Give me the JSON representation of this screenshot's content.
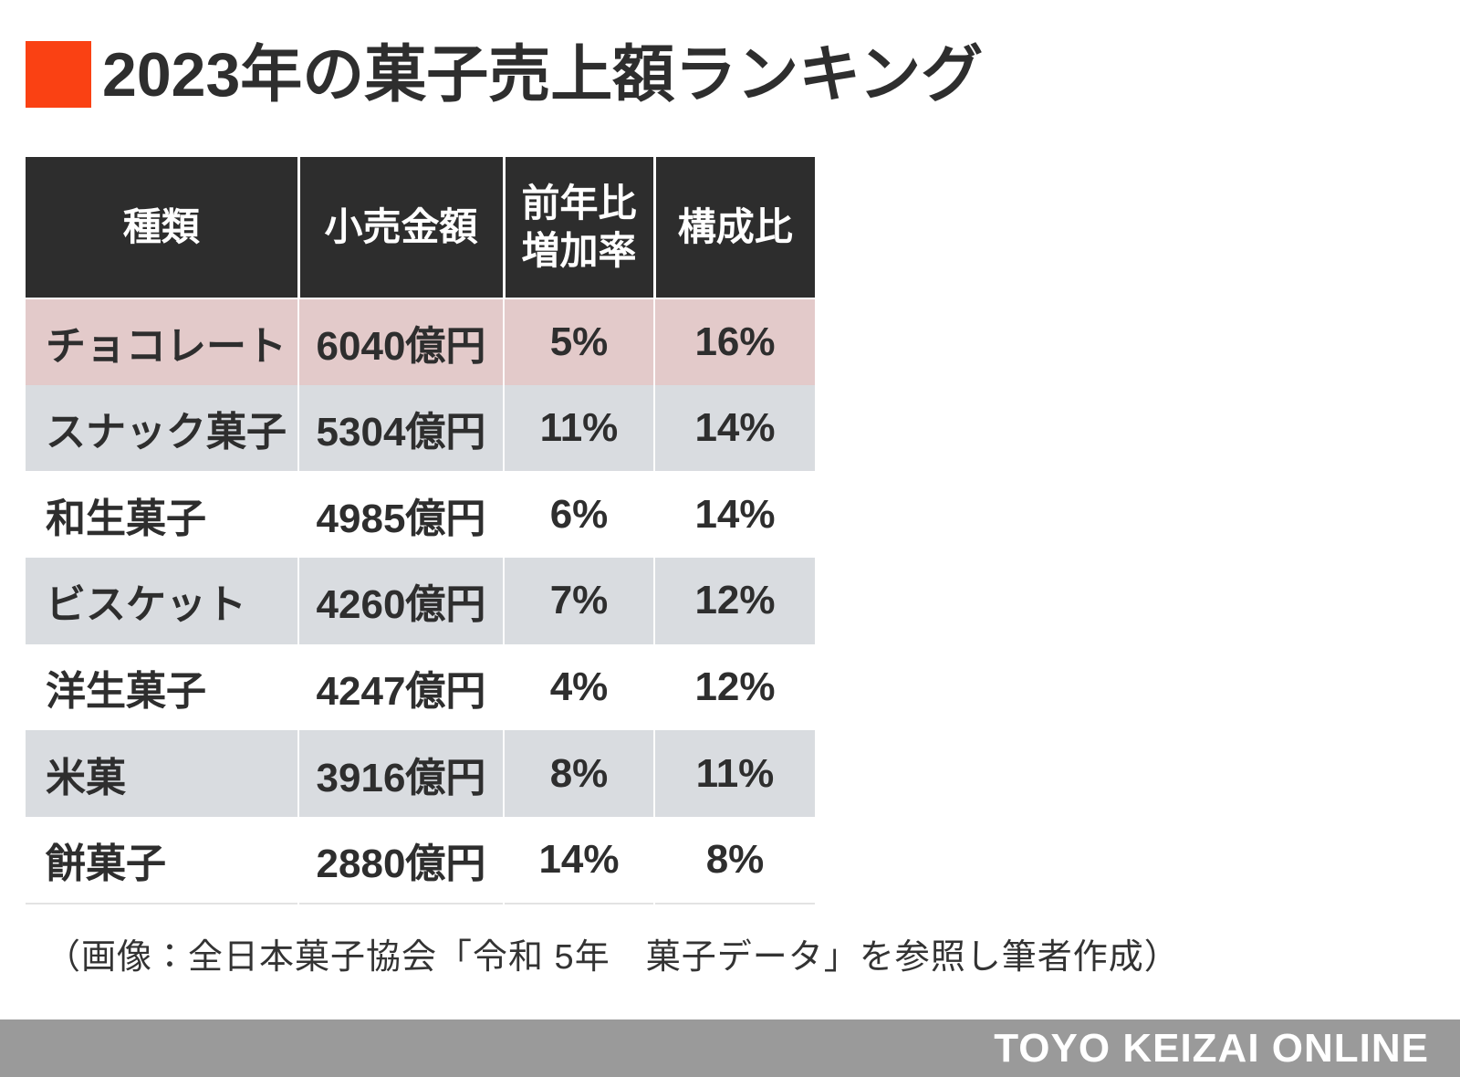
{
  "title": "2023年の菓子売上額ランキング",
  "colors": {
    "accent_red": "#fa4113",
    "header_bg": "#2d2d2d",
    "header_text": "#ffffff",
    "highlight_row_bg": "#e3caca",
    "alt_row_bg": "#d9dce0",
    "row_bg": "#ffffff",
    "cell_text": "#2e2e2e",
    "footer_bg": "#9a9a9a",
    "footer_text": "#ffffff"
  },
  "table": {
    "headers": [
      "種類",
      "小売金額",
      "前年比\n増加率",
      "構成比"
    ],
    "rows": [
      {
        "type": "チョコレート",
        "amount": "6040億円",
        "yoy": "5%",
        "share": "16%"
      },
      {
        "type": "スナック菓子",
        "amount": "5304億円",
        "yoy": "11%",
        "share": "14%"
      },
      {
        "type": "和生菓子",
        "amount": "4985億円",
        "yoy": "6%",
        "share": "14%"
      },
      {
        "type": "ビスケット",
        "amount": "4260億円",
        "yoy": "7%",
        "share": "12%"
      },
      {
        "type": "洋生菓子",
        "amount": "4247億円",
        "yoy": "4%",
        "share": "12%"
      },
      {
        "type": "米菓",
        "amount": "3916億円",
        "yoy": "8%",
        "share": "11%"
      },
      {
        "type": "餅菓子",
        "amount": "2880億円",
        "yoy": "14%",
        "share": "8%"
      }
    ]
  },
  "caption": "（画像：全日本菓子協会「令和 5年　菓子データ」を参照し筆者作成）",
  "footer": {
    "brand": "TOYO KEIZAI ONLINE"
  },
  "chart_data": {
    "type": "table",
    "title": "2023年の菓子売上額ランキング",
    "columns": [
      "種類",
      "小売金額",
      "前年比増加率",
      "構成比"
    ],
    "rows": [
      [
        "チョコレート",
        "6040億円",
        "5%",
        "16%"
      ],
      [
        "スナック菓子",
        "5304億円",
        "11%",
        "14%"
      ],
      [
        "和生菓子",
        "4985億円",
        "6%",
        "14%"
      ],
      [
        "ビスケット",
        "4260億円",
        "7%",
        "12%"
      ],
      [
        "洋生菓子",
        "4247億円",
        "4%",
        "12%"
      ],
      [
        "米菓",
        "3916億円",
        "8%",
        "11%"
      ],
      [
        "餅菓子",
        "2880億円",
        "14%",
        "8%"
      ]
    ],
    "numeric": {
      "retail_amount_oku_yen": [
        6040,
        5304,
        4985,
        4260,
        4247,
        3916,
        2880
      ],
      "yoy_growth_pct": [
        5,
        11,
        6,
        7,
        4,
        8,
        14
      ],
      "share_pct": [
        16,
        14,
        14,
        12,
        12,
        11,
        8
      ]
    },
    "highlighted_row": "チョコレート",
    "source_note": "（画像：全日本菓子協会「令和 5年　菓子データ」を参照し筆者作成）"
  }
}
